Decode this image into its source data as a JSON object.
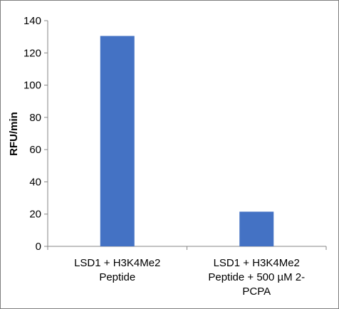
{
  "chart_data": {
    "type": "bar",
    "title": "",
    "xlabel": "",
    "ylabel": "RFU/min",
    "ylim": [
      0,
      140
    ],
    "yticks": [
      0,
      20,
      40,
      60,
      80,
      100,
      120,
      140
    ],
    "grid": false,
    "legend": "none",
    "categories": [
      [
        "LSD1 + H3K4Me2",
        "Peptide"
      ],
      [
        "LSD1 + H3K4Me2",
        "Peptide + 500 µM 2-",
        "PCPA"
      ]
    ],
    "values": [
      130.5,
      21.5
    ],
    "bar_color": "#4472c4",
    "axis_color": "#868686"
  }
}
